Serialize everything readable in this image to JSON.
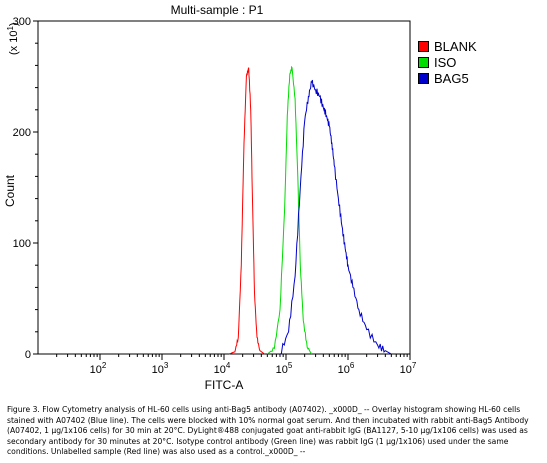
{
  "chart_data": {
    "type": "line",
    "title": "Multi-sample : P1",
    "xlabel": "FITC-A",
    "ylabel": "Count",
    "y_multiplier": "(x 10",
    "y_multiplier_exp": "1",
    "y_multiplier_close": ")",
    "x_scale": "log",
    "xlim": [
      10,
      10000000
    ],
    "ylim": [
      0,
      300
    ],
    "x_ticks": [
      {
        "value": 100,
        "base": "10",
        "exp": "2"
      },
      {
        "value": 1000,
        "base": "10",
        "exp": "3"
      },
      {
        "value": 10000,
        "base": "10",
        "exp": "4"
      },
      {
        "value": 100000,
        "base": "10",
        "exp": "5"
      },
      {
        "value": 1000000,
        "base": "10",
        "exp": "6"
      },
      {
        "value": 10000000,
        "base": "10",
        "exp": "7"
      }
    ],
    "y_ticks": [
      "0",
      "100",
      "200",
      "300"
    ],
    "grid": false,
    "legend_position": "right",
    "series": [
      {
        "name": "BLANK",
        "color": "#ff0000",
        "x": [
          12000,
          15000,
          17000,
          19000,
          21000,
          23000,
          25000,
          27000,
          29000,
          31000,
          34000,
          38000,
          45000
        ],
        "y": [
          0,
          2,
          15,
          80,
          190,
          250,
          258,
          220,
          130,
          55,
          15,
          3,
          0
        ]
      },
      {
        "name": "ISO",
        "color": "#00dd00",
        "x": [
          50000,
          65000,
          80000,
          95000,
          105000,
          115000,
          125000,
          140000,
          155000,
          170000,
          190000,
          220000,
          260000
        ],
        "y": [
          0,
          5,
          40,
          130,
          215,
          252,
          258,
          230,
          160,
          80,
          30,
          6,
          0
        ]
      },
      {
        "name": "BAG5",
        "color": "#0000cc",
        "x": [
          80000,
          110000,
          140000,
          170000,
          200000,
          230000,
          260000,
          300000,
          350000,
          400000,
          450000,
          500000,
          550000,
          600000,
          700000,
          800000,
          900000,
          1000000,
          1200000,
          1500000,
          2000000,
          3000000,
          4000000,
          5000000
        ],
        "y": [
          0,
          20,
          70,
          150,
          210,
          232,
          245,
          238,
          232,
          222,
          215,
          205,
          190,
          170,
          140,
          115,
          95,
          80,
          60,
          40,
          22,
          8,
          3,
          0
        ]
      }
    ],
    "legend": [
      {
        "label": "BLANK",
        "color": "#ff0000"
      },
      {
        "label": "ISO",
        "color": "#00dd00"
      },
      {
        "label": "BAG5",
        "color": "#0000cc"
      }
    ]
  },
  "caption": "Figure 3. Flow Cytometry analysis of HL-60 cells using anti-Bag5 antibody (A07402). _x000D_ -- Overlay histogram showing HL-60 cells stained with A07402 (Blue line). The cells were blocked with 10% normal goat serum. And then incubated with rabbit anti-Bag5 Antibody (A07402, 1 μg/1x106 cells) for 30 min at 20°C. DyLight®488 conjugated goat anti-rabbit IgG (BA1127, 5-10 μg/1x106 cells) was used as secondary antibody for 30 minutes at 20°C. Isotype control antibody (Green line) was rabbit IgG (1 μg/1x106) used under the same conditions. Unlabelled sample (Red line) was also used as a control._x000D_ --"
}
